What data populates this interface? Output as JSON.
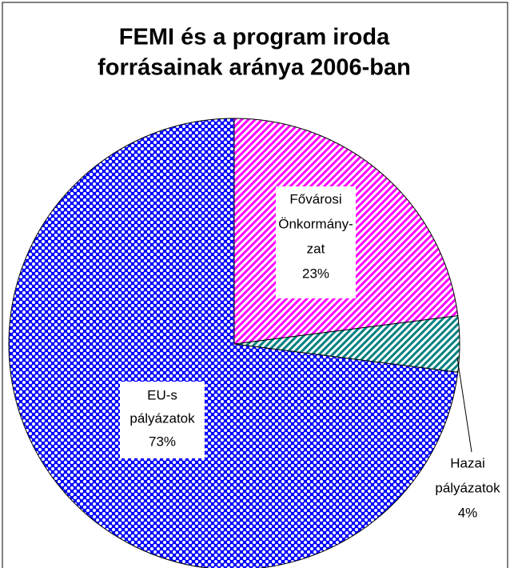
{
  "chart_data": {
    "type": "pie",
    "title": [
      "FEMI és a program iroda",
      "forrásainak aránya 2006-ban"
    ],
    "categories": [
      [
        "Fővárosi",
        "Önkormány-",
        "zat"
      ],
      [
        "Hazai",
        "pályázatok"
      ],
      [
        "EU-s",
        "pályázatok"
      ]
    ],
    "values": [
      23,
      4,
      73
    ],
    "value_labels": [
      "23%",
      "4%",
      "73%"
    ],
    "colors": [
      "#ff00ff",
      "#008080",
      "#0000ff"
    ]
  }
}
